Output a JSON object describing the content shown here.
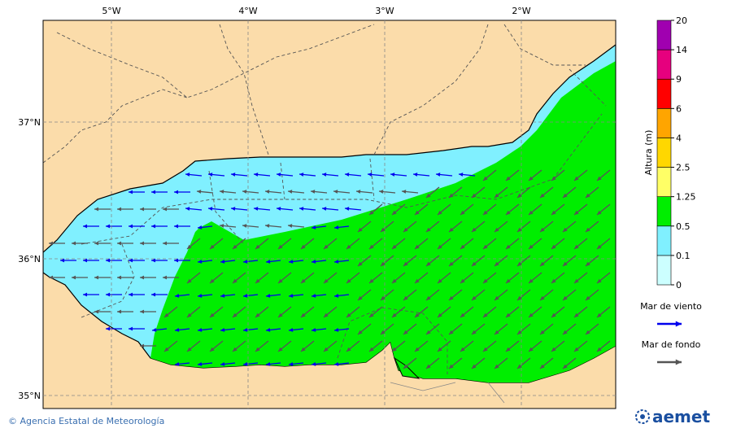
{
  "map": {
    "lon_ticks": [
      {
        "value": -5,
        "label": "5°W"
      },
      {
        "value": -4,
        "label": "4°W"
      },
      {
        "value": -3,
        "label": "3°W"
      },
      {
        "value": -2,
        "label": "2°W"
      }
    ],
    "lat_ticks": [
      {
        "value": 37,
        "label": "37°N"
      },
      {
        "value": 36,
        "label": "36°N"
      },
      {
        "value": 35,
        "label": "35°N"
      }
    ]
  },
  "colorbar": {
    "title": "Altura (m)",
    "levels": [
      0,
      0.1,
      0.5,
      1.25,
      2.5,
      4,
      6,
      9,
      14,
      20
    ],
    "colors": [
      "#ccffff",
      "#80f0ff",
      "#00ee00",
      "#ffff66",
      "#ffd700",
      "#ffa500",
      "#ff0000",
      "#e6007e",
      "#a000b0"
    ]
  },
  "legend": [
    {
      "label": "Mar de viento",
      "color": "#0000ee"
    },
    {
      "label": "Mar de fondo",
      "color": "#555555"
    }
  ],
  "footer": {
    "credit": "© Agencia Estatal de Meteorología",
    "logo": "aemet"
  }
}
